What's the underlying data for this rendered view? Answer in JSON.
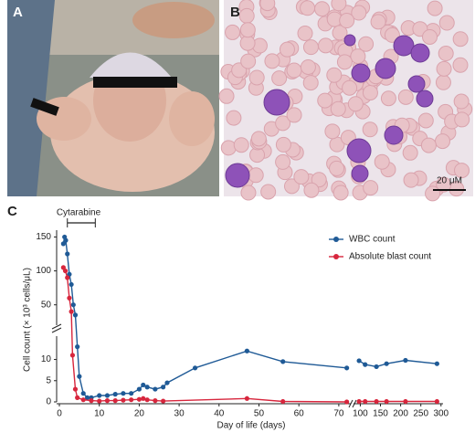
{
  "panels": {
    "a": {
      "label": "A"
    },
    "b": {
      "label": "B",
      "scale_bar": "20 μM"
    },
    "c": {
      "label": "C"
    }
  },
  "chart_data": {
    "type": "line",
    "y_label": "Cell count (× 10³ cells/μL)",
    "x_label": "Day of life (days)",
    "annotation": {
      "text": "Cytarabine",
      "start": 2,
      "end": 9
    },
    "x_segments": [
      {
        "xlim": [
          0,
          73
        ],
        "xticks": [
          0,
          10,
          20,
          30,
          40,
          50,
          60,
          70
        ]
      },
      {
        "xlim": [
          90,
          305
        ],
        "xticks": [
          100,
          150,
          200,
          250,
          300
        ]
      }
    ],
    "y_segments": [
      {
        "ylim": [
          0,
          15.5
        ],
        "yticks": [
          0,
          5,
          10
        ]
      },
      {
        "ylim": [
          20,
          160
        ],
        "yticks": [
          50,
          100,
          150
        ]
      }
    ],
    "legend": "upper right",
    "series": [
      {
        "name": "WBC count",
        "color": "#1f5a96",
        "x": [
          1,
          1.3,
          1.6,
          2,
          2.5,
          3,
          3.5,
          4,
          4.5,
          5,
          6,
          7,
          8,
          10,
          12,
          14,
          16,
          18,
          20,
          21,
          22,
          24,
          26,
          27,
          34,
          47,
          56,
          72,
          97,
          112,
          140,
          165,
          212,
          290
        ],
        "values": [
          140,
          150,
          145,
          125,
          95,
          80,
          50,
          35,
          13,
          6,
          2,
          1,
          1,
          1.5,
          1.5,
          1.8,
          2,
          2,
          3,
          4,
          3.5,
          3,
          3.5,
          4.5,
          8,
          12,
          9.5,
          8,
          9.7,
          8.8,
          8.3,
          9,
          9.8,
          9
        ]
      },
      {
        "name": "Absolute blast count",
        "color": "#d7263d",
        "x": [
          1,
          1.5,
          2,
          2.5,
          3,
          3.3,
          4,
          4.5,
          6,
          8,
          10,
          12,
          14,
          16,
          18,
          20,
          21,
          22,
          24,
          26,
          47,
          56,
          72,
          97,
          112,
          140,
          165,
          212,
          290
        ],
        "values": [
          105,
          100,
          90,
          60,
          40,
          11,
          3,
          1,
          0.5,
          0.3,
          0.2,
          0.3,
          0.3,
          0.4,
          0.5,
          0.6,
          0.8,
          0.5,
          0.3,
          0.2,
          0.8,
          0.1,
          0,
          0.1,
          0.1,
          0.1,
          0.1,
          0.1,
          0.1
        ]
      }
    ]
  }
}
